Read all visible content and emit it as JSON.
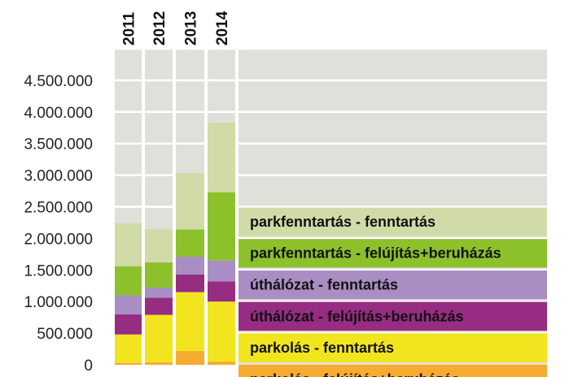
{
  "chart_data": {
    "type": "bar",
    "stacked": true,
    "categories": [
      "2011",
      "2012",
      "2013",
      "2014"
    ],
    "series": [
      {
        "name": "parkolás - felújítás+beruházás",
        "color": "#F7AC31",
        "values": [
          30000,
          40000,
          220000,
          50000
        ]
      },
      {
        "name": "parkolás - fenntartás",
        "color": "#F2E51F",
        "values": [
          450000,
          750000,
          930000,
          950000
        ]
      },
      {
        "name": "úthálózat - felújítás+beruházás",
        "color": "#962D82",
        "values": [
          320000,
          270000,
          280000,
          320000
        ]
      },
      {
        "name": "úthálózat - fenntartás",
        "color": "#A98EC4",
        "values": [
          300000,
          160000,
          280000,
          330000
        ]
      },
      {
        "name": "parkfenntartás - felújítás+beruházás",
        "color": "#8DC12B",
        "values": [
          460000,
          400000,
          430000,
          1080000
        ]
      },
      {
        "name": "parkfenntartás - fenntartás",
        "color": "#D0DBA7",
        "values": [
          680000,
          530000,
          890000,
          1100000
        ]
      }
    ],
    "yticks": [
      "0",
      "500.000",
      "1.000.000",
      "1.500.000",
      "2.000.000",
      "2.500.000",
      "3.000.000",
      "3.500.000",
      "4.000.000",
      "4.500.000"
    ],
    "ylim": [
      0,
      5000000
    ],
    "grid": true,
    "legend_position": "right",
    "background_color": "#E1DFDA"
  }
}
